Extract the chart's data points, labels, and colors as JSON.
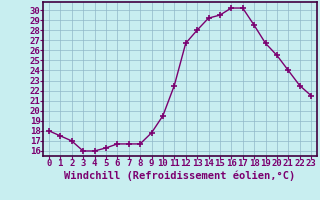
{
  "x": [
    0,
    1,
    2,
    3,
    4,
    5,
    6,
    7,
    8,
    9,
    10,
    11,
    12,
    13,
    14,
    15,
    16,
    17,
    18,
    19,
    20,
    21,
    22,
    23
  ],
  "y": [
    18,
    17.5,
    17,
    16,
    16,
    16.3,
    16.7,
    16.7,
    16.7,
    17.8,
    19.5,
    22.5,
    26.7,
    28,
    29.2,
    29.5,
    30.2,
    30.2,
    28.5,
    26.7,
    25.5,
    24,
    22.5,
    21.5
  ],
  "line_color": "#7b0070",
  "marker": "+",
  "bg_color": "#c8eef0",
  "grid_color": "#90b8c8",
  "axis_color": "#400040",
  "xlabel": "Windchill (Refroidissement éolien,°C)",
  "yticks": [
    16,
    17,
    18,
    19,
    20,
    21,
    22,
    23,
    24,
    25,
    26,
    27,
    28,
    29,
    30
  ],
  "xticks": [
    0,
    1,
    2,
    3,
    4,
    5,
    6,
    7,
    8,
    9,
    10,
    11,
    12,
    13,
    14,
    15,
    16,
    17,
    18,
    19,
    20,
    21,
    22,
    23
  ],
  "ylim": [
    15.5,
    30.8
  ],
  "xlim": [
    -0.5,
    23.5
  ],
  "xlabel_color": "#7b0070",
  "tick_color": "#7b0070",
  "xlabel_fontsize": 7.5,
  "tick_fontsize": 6.5,
  "marker_size": 4,
  "line_width": 1.0
}
